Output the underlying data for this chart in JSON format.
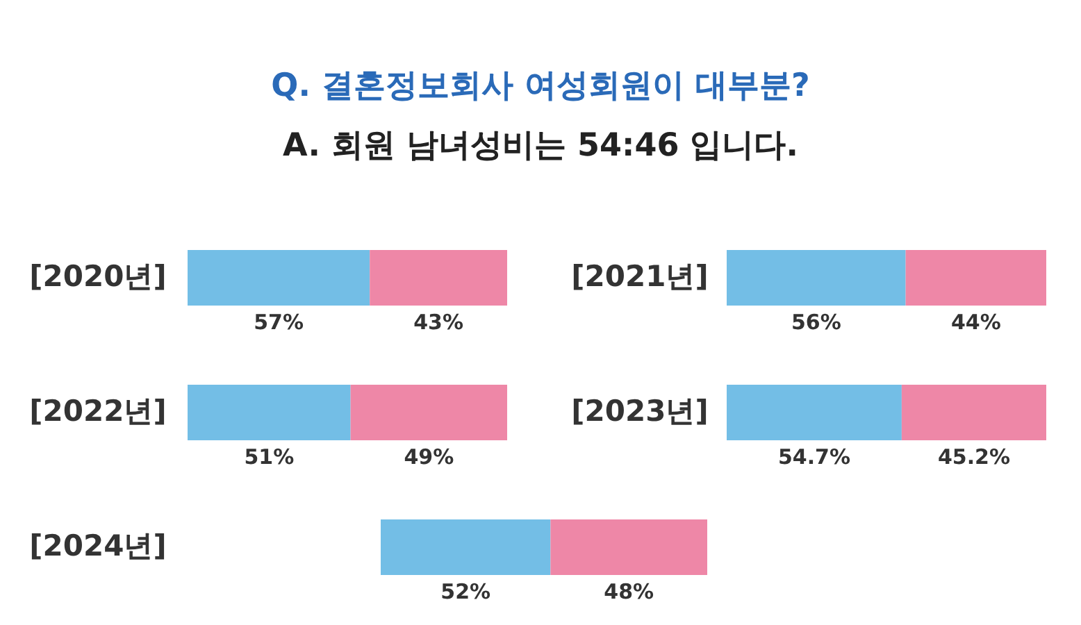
{
  "chart_data": [
    {
      "type": "other",
      "title": "Q. 결혼정보회사 여성회원이 대부분?",
      "subtitle": "A. 회원 남녀성비는 54:46 입니다."
    },
    {
      "type": "bar",
      "orientation": "horizontal",
      "stacked": true,
      "categories": [
        "[2020년]"
      ],
      "tick_labels": "y",
      "series": [
        {
          "color": "#73bee6",
          "values": [
            57
          ],
          "value_labels": [
            "57%"
          ]
        },
        {
          "color": "#ee87a7",
          "values": [
            43
          ],
          "value_labels": [
            "43%"
          ]
        }
      ]
    },
    {
      "type": "bar",
      "orientation": "horizontal",
      "stacked": true,
      "categories": [
        "[2021년]"
      ],
      "tick_labels": "y",
      "series": [
        {
          "color": "#73bee6",
          "values": [
            56
          ],
          "value_labels": [
            "56%"
          ]
        },
        {
          "color": "#ee87a7",
          "values": [
            44
          ],
          "value_labels": [
            "44%"
          ]
        }
      ]
    },
    {
      "type": "bar",
      "orientation": "horizontal",
      "stacked": true,
      "categories": [
        "[2022년]"
      ],
      "tick_labels": "y",
      "series": [
        {
          "color": "#73bee6",
          "values": [
            51
          ],
          "value_labels": [
            "51%"
          ]
        },
        {
          "color": "#ee87a7",
          "values": [
            49
          ],
          "value_labels": [
            "49%"
          ]
        }
      ]
    },
    {
      "type": "bar",
      "orientation": "horizontal",
      "stacked": true,
      "categories": [
        "[2023년]"
      ],
      "tick_labels": "y",
      "series": [
        {
          "color": "#73bee6",
          "values": [
            54.7
          ],
          "value_labels": [
            "54.7%"
          ]
        },
        {
          "color": "#ee87a7",
          "values": [
            45.2
          ],
          "value_labels": [
            "45.2%"
          ]
        }
      ]
    },
    {
      "type": "bar",
      "orientation": "horizontal",
      "stacked": true,
      "categories": [
        "[2024년]"
      ],
      "tick_labels": "y",
      "series": [
        {
          "color": "#73bee6",
          "values": [
            52
          ],
          "value_labels": [
            "52%"
          ]
        },
        {
          "color": "#ee87a7",
          "values": [
            48
          ],
          "value_labels": [
            "48%"
          ]
        }
      ]
    }
  ]
}
